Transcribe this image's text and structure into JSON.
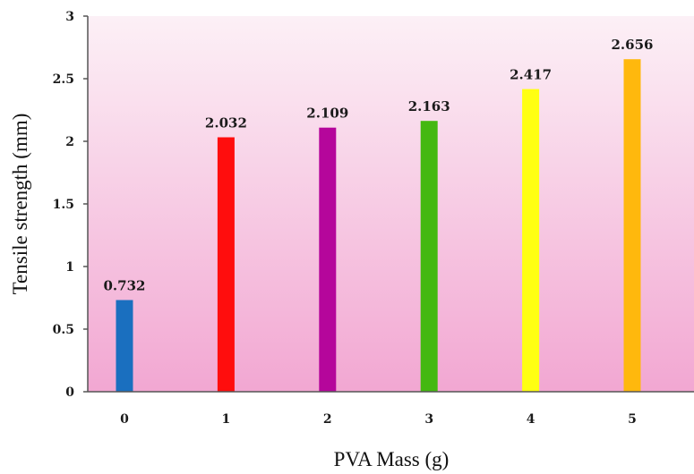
{
  "chart_data": {
    "type": "bar",
    "xlabel": "PVA Mass (g)",
    "ylabel": "Tensile strength (mm)",
    "categories": [
      "0",
      "1",
      "2",
      "3",
      "4",
      "5"
    ],
    "values": [
      0.732,
      2.032,
      2.109,
      2.163,
      2.417,
      2.656
    ],
    "value_labels": [
      "0.732",
      "2.032",
      "2.109",
      "2.163",
      "2.417",
      "2.656"
    ],
    "bar_colors": [
      "#1a6fbf",
      "#ff0d0d",
      "#b5069b",
      "#44b811",
      "#ffff12",
      "#ffb80d"
    ],
    "ylim": [
      0,
      3
    ],
    "yticks": [
      "0",
      "0.5",
      "1",
      "1.5",
      "2",
      "2.5",
      "3"
    ],
    "grid": false,
    "plot_background": {
      "top": "#fcf0f6",
      "bottom": "#f2a7d2"
    }
  }
}
